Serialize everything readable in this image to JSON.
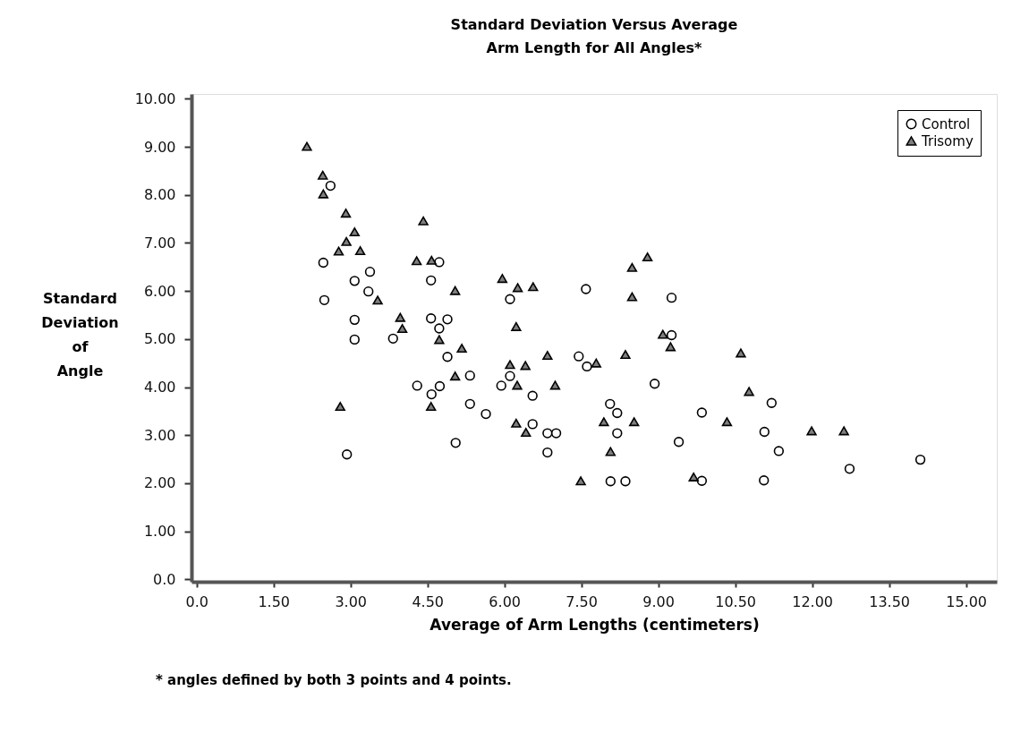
{
  "chart_data": {
    "type": "scatter",
    "title": [
      "Standard Deviation Versus Average",
      "Arm Length for All Angles*"
    ],
    "xlabel": "Average of Arm Lengths (centimeters)",
    "ylabel": "Standard Deviation of Angle",
    "annotations": [
      "* angles defined by both 3 points and 4 points."
    ],
    "legend": "top right",
    "grid": false,
    "xlim": [
      -0.1,
      15.6
    ],
    "ylim": [
      -0.05,
      10.1
    ],
    "xticks": [
      {
        "value": 0,
        "label": "0.0"
      },
      {
        "value": 1.5,
        "label": "1.50"
      },
      {
        "value": 3,
        "label": "3.00"
      },
      {
        "value": 4.5,
        "label": "4.50"
      },
      {
        "value": 6,
        "label": "6.00"
      },
      {
        "value": 7.5,
        "label": "7.50"
      },
      {
        "value": 9,
        "label": "9.00"
      },
      {
        "value": 10.5,
        "label": "10.50"
      },
      {
        "value": 12,
        "label": "12.00"
      },
      {
        "value": 13.5,
        "label": "13.50"
      },
      {
        "value": 15,
        "label": "15.00"
      }
    ],
    "yticks": [
      {
        "value": 0,
        "label": "0.0"
      },
      {
        "value": 1,
        "label": "1.00"
      },
      {
        "value": 2,
        "label": "2.00"
      },
      {
        "value": 3,
        "label": "3.00"
      },
      {
        "value": 4,
        "label": "4.00"
      },
      {
        "value": 5,
        "label": "5.00"
      },
      {
        "value": 6,
        "label": "6.00"
      },
      {
        "value": 7,
        "label": "7.00"
      },
      {
        "value": 8,
        "label": "8.00"
      },
      {
        "value": 9,
        "label": "9.00"
      },
      {
        "value": 10,
        "label": "10.00"
      }
    ],
    "series": [
      {
        "name": "Control",
        "color": "#000000",
        "marker": "circle",
        "x": [
          2.61,
          2.47,
          4.73,
          3.38,
          3.08,
          4.57,
          3.35,
          2.49,
          3.08,
          4.57,
          4.89,
          4.73,
          3.08,
          3.83,
          4.89,
          5.33,
          4.3,
          4.74,
          4.58,
          5.33,
          5.05,
          2.93,
          6.11,
          7.59,
          9.26,
          9.26,
          7.45,
          7.61,
          6.11,
          5.94,
          6.55,
          8.93,
          5.64,
          8.06,
          8.2,
          9.85,
          6.55,
          6.84,
          7.01,
          8.2,
          9.4,
          6.84,
          8.07,
          8.36,
          9.85,
          11.21,
          11.07,
          11.35,
          12.73,
          14.11,
          11.06
        ],
        "values": [
          8.19,
          6.59,
          6.6,
          6.4,
          6.21,
          6.22,
          5.99,
          5.81,
          5.4,
          5.43,
          5.41,
          5.22,
          4.99,
          5.01,
          4.63,
          4.24,
          4.03,
          4.02,
          3.85,
          3.65,
          2.84,
          2.6,
          5.83,
          6.04,
          5.86,
          5.08,
          4.64,
          4.43,
          4.23,
          4.03,
          3.82,
          4.07,
          3.44,
          3.65,
          3.46,
          3.47,
          3.23,
          3.04,
          3.04,
          3.04,
          2.86,
          2.64,
          2.04,
          2.04,
          2.05,
          3.67,
          3.07,
          2.67,
          2.3,
          2.49,
          2.06
        ]
      },
      {
        "name": "Trisomy",
        "color": "#7f7f7f",
        "marker": "triangle",
        "x": [
          2.15,
          2.46,
          2.47,
          2.91,
          4.42,
          3.08,
          2.92,
          2.77,
          3.19,
          4.29,
          4.58,
          5.04,
          3.53,
          3.97,
          4.01,
          4.73,
          5.17,
          5.04,
          4.57,
          2.8,
          5.96,
          6.26,
          6.56,
          8.49,
          8.79,
          8.49,
          6.23,
          9.09,
          9.24,
          10.61,
          6.84,
          7.79,
          8.36,
          6.11,
          6.41,
          6.25,
          6.99,
          10.77,
          6.23,
          6.42,
          7.94,
          8.53,
          10.34,
          11.99,
          12.62,
          8.07,
          7.49,
          9.69
        ],
        "values": [
          9.01,
          8.41,
          8.02,
          7.62,
          7.46,
          7.23,
          7.03,
          6.83,
          6.84,
          6.63,
          6.64,
          6.01,
          5.81,
          5.45,
          5.22,
          4.99,
          4.81,
          4.23,
          3.6,
          3.6,
          6.26,
          6.07,
          6.09,
          6.49,
          6.71,
          5.88,
          5.26,
          5.1,
          4.84,
          4.71,
          4.66,
          4.5,
          4.68,
          4.47,
          4.45,
          4.04,
          4.04,
          3.91,
          3.25,
          3.06,
          3.28,
          3.28,
          3.28,
          3.09,
          3.09,
          2.66,
          2.05,
          2.13
        ]
      }
    ]
  }
}
